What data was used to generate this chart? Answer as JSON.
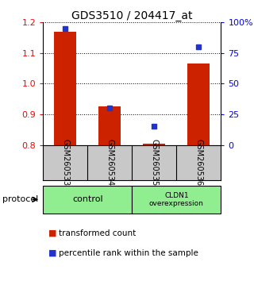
{
  "title": "GDS3510 / 204417_at",
  "samples": [
    "GSM260533",
    "GSM260534",
    "GSM260535",
    "GSM260536"
  ],
  "transformed_counts": [
    1.17,
    0.925,
    0.805,
    1.065
  ],
  "percentile_ranks": [
    95,
    30,
    15,
    80
  ],
  "ylim_left": [
    0.8,
    1.2
  ],
  "ylim_right": [
    0,
    100
  ],
  "yticks_left": [
    0.8,
    0.9,
    1.0,
    1.1,
    1.2
  ],
  "yticks_right": [
    0,
    25,
    50,
    75,
    100
  ],
  "ytick_labels_right": [
    "0",
    "25",
    "50",
    "75",
    "100%"
  ],
  "bar_color": "#CC2200",
  "dot_color": "#2233CC",
  "bar_width": 0.5,
  "background_color": "#ffffff",
  "sample_area_color": "#C8C8C8",
  "group_color": "#90EE90",
  "title_fontsize": 10,
  "axis_fontsize": 8,
  "label_fontsize": 8,
  "legend_fontsize": 7.5
}
